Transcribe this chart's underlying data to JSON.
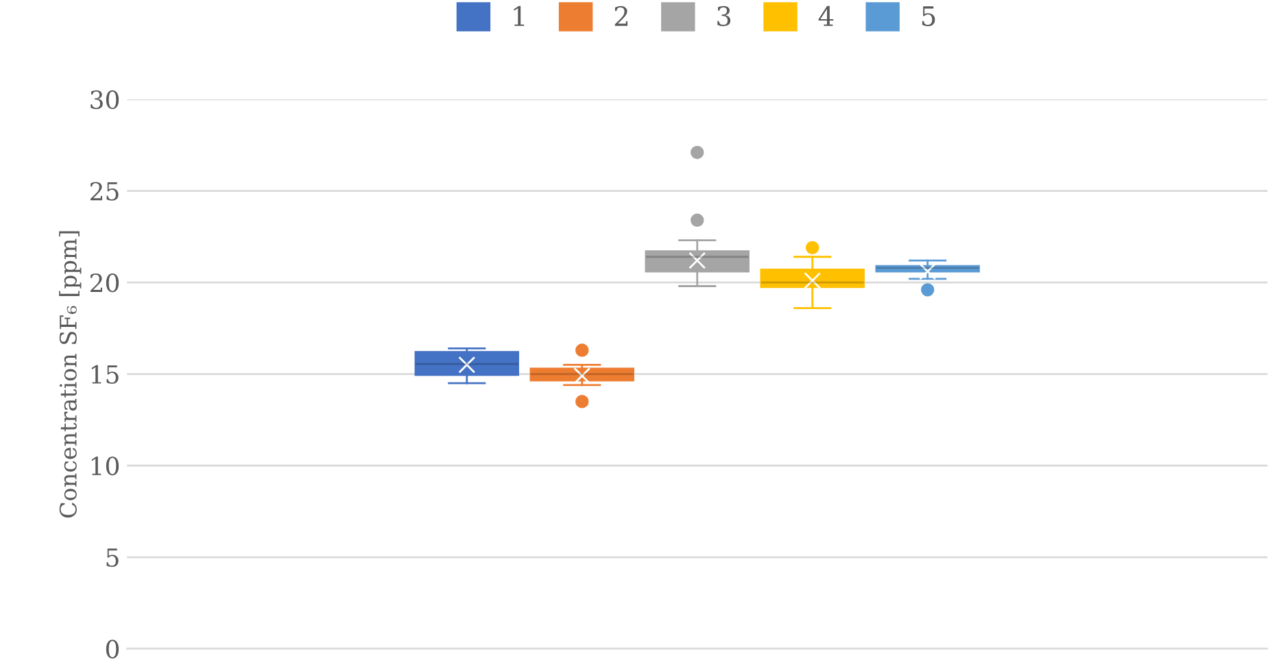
{
  "chart_data": {
    "type": "box",
    "ylabel": "Concentration SF₆ [ppm]",
    "categories": [
      null
    ],
    "series": [
      {
        "name": "1",
        "color": "#4472c4",
        "boxes": [
          {
            "low": 14.5,
            "q1": 14.95,
            "median": 15.55,
            "q3": 16.2,
            "high": 16.4,
            "mean": 15.5
          }
        ]
      },
      {
        "name": "2",
        "color": "#ed7d31",
        "boxes": [
          {
            "low": 14.4,
            "q1": 14.65,
            "median": 15.0,
            "q3": 15.3,
            "high": 15.5,
            "mean": 14.9,
            "outliers": [
              16.3,
              13.5
            ]
          }
        ]
      },
      {
        "name": "3",
        "color": "#a5a5a5",
        "boxes": [
          {
            "low": 19.8,
            "q1": 20.6,
            "median": 21.4,
            "q3": 21.7,
            "high": 22.3,
            "mean": 21.2,
            "outliers": [
              27.1,
              23.4
            ]
          }
        ]
      },
      {
        "name": "4",
        "color": "#ffc000",
        "boxes": [
          {
            "low": 18.6,
            "q1": 19.75,
            "median": 20.0,
            "q3": 20.7,
            "high": 21.4,
            "mean": 20.1,
            "outliers": [
              21.9
            ]
          }
        ]
      },
      {
        "name": "5",
        "color": "#5b9bd5",
        "boxes": [
          {
            "low": 20.2,
            "q1": 20.6,
            "median": 20.8,
            "q3": 20.9,
            "high": 21.2,
            "mean": 20.6,
            "outliers": [
              19.6
            ]
          }
        ]
      }
    ],
    "ylim": [
      0,
      30
    ],
    "yticks": [
      0,
      5,
      10,
      15,
      20,
      25,
      30
    ],
    "grid": "y",
    "legend": "top",
    "tick_labels": "y"
  }
}
